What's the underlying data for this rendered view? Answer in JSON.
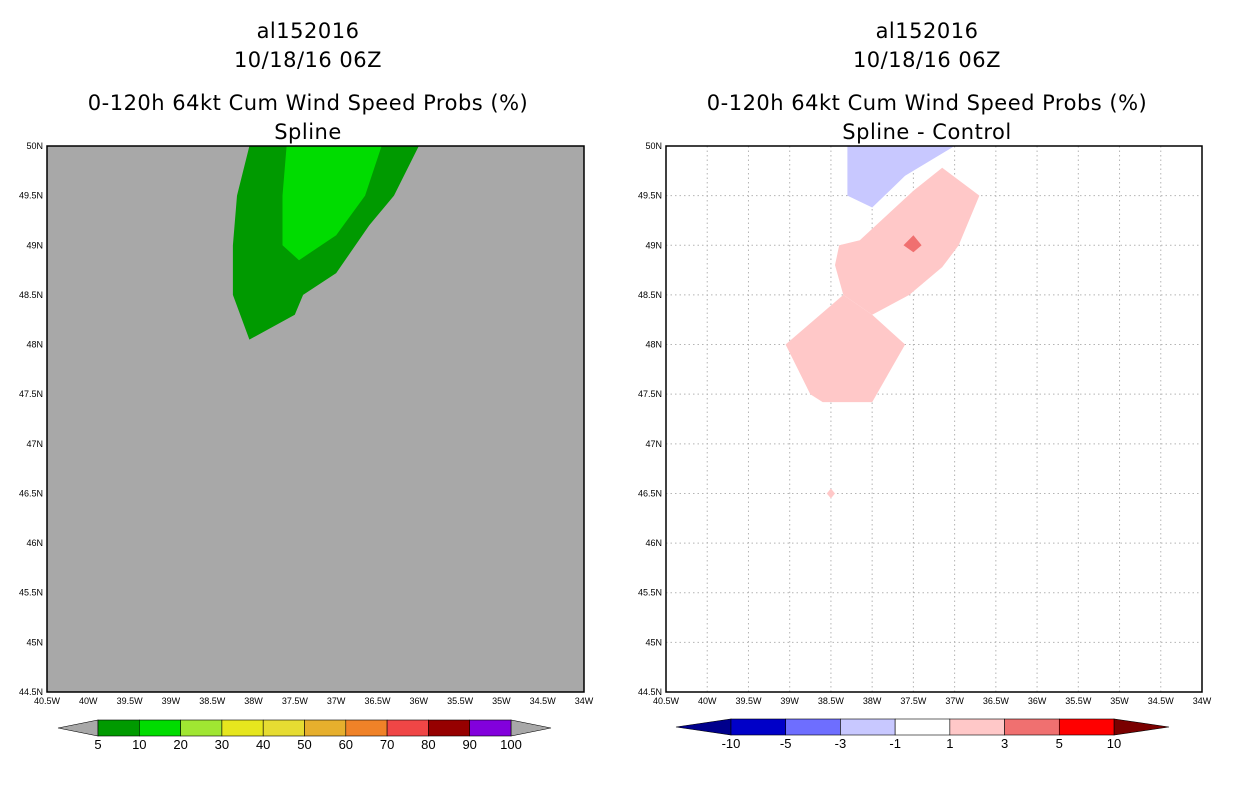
{
  "chart_data": [
    {
      "type": "filled-contour-map",
      "title_lines": [
        "al152016",
        "10/18/16 06Z",
        "0-120h 64kt Cum Wind Speed Probs (%)",
        "Spline"
      ],
      "x_ticks": [
        "40.5W",
        "40W",
        "39.5W",
        "39W",
        "38.5W",
        "38W",
        "37.5W",
        "37W",
        "36.5W",
        "36W",
        "35.5W",
        "35W",
        "34.5W",
        "34W"
      ],
      "y_ticks": [
        "50N",
        "49.5N",
        "49N",
        "48.5N",
        "48N",
        "47.5N",
        "47N",
        "46.5N",
        "46N",
        "45.5N",
        "45N",
        "44.5N"
      ],
      "xlim": [
        -40.5,
        -34.0
      ],
      "ylim": [
        44.5,
        50.0
      ],
      "grid": false,
      "background_color": "#a8a8a8",
      "regions": [
        {
          "name": "5-10%",
          "color": "#009a00",
          "lonlat": [
            [
              -38.05,
              50.0
            ],
            [
              -38.2,
              49.5
            ],
            [
              -38.25,
              49.0
            ],
            [
              -38.25,
              48.5
            ],
            [
              -38.05,
              48.05
            ],
            [
              -37.5,
              48.3
            ],
            [
              -37.4,
              48.5
            ],
            [
              -37.0,
              48.72
            ],
            [
              -36.6,
              49.2
            ],
            [
              -36.3,
              49.5
            ],
            [
              -36.0,
              50.0
            ]
          ]
        },
        {
          "name": "10-20%",
          "color": "#00dc00",
          "lonlat": [
            [
              -37.6,
              50.0
            ],
            [
              -37.65,
              49.5
            ],
            [
              -37.65,
              49.0
            ],
            [
              -37.45,
              48.85
            ],
            [
              -37.0,
              49.1
            ],
            [
              -36.65,
              49.5
            ],
            [
              -36.45,
              50.0
            ]
          ]
        }
      ],
      "colorbar": {
        "labels": [
          "5",
          "10",
          "20",
          "30",
          "40",
          "50",
          "60",
          "70",
          "80",
          "90",
          "100"
        ],
        "colors": [
          "#009a00",
          "#00dc00",
          "#a0e632",
          "#e6e61e",
          "#e6dc32",
          "#e6af2d",
          "#f08228",
          "#f04646",
          "#960000",
          "#8200dc"
        ],
        "extend_color": "#a8a8a8"
      }
    },
    {
      "type": "filled-contour-map",
      "title_lines": [
        "al152016",
        "10/18/16 06Z",
        "0-120h 64kt Cum Wind Speed Probs (%)",
        "Spline - Control"
      ],
      "x_ticks": [
        "40.5W",
        "40W",
        "39.5W",
        "39W",
        "38.5W",
        "38W",
        "37.5W",
        "37W",
        "36.5W",
        "36W",
        "35.5W",
        "35W",
        "34.5W",
        "34W"
      ],
      "y_ticks": [
        "50N",
        "49.5N",
        "49N",
        "48.5N",
        "48N",
        "47.5N",
        "47N",
        "46.5N",
        "46N",
        "45.5N",
        "45N",
        "44.5N"
      ],
      "xlim": [
        -40.5,
        -34.0
      ],
      "ylim": [
        44.5,
        50.0
      ],
      "grid": true,
      "background_color": "#ffffff",
      "regions": [
        {
          "name": "-3 to -1",
          "color": "#c8c8ff",
          "lonlat": [
            [
              -38.3,
              50.0
            ],
            [
              -38.3,
              49.5
            ],
            [
              -38.0,
              49.38
            ],
            [
              -37.6,
              49.7
            ],
            [
              -37.0,
              50.0
            ]
          ]
        },
        {
          "name": "1 to 3 (north)",
          "color": "#ffc8c8",
          "lonlat": [
            [
              -38.15,
              49.05
            ],
            [
              -37.5,
              49.55
            ],
            [
              -37.15,
              49.78
            ],
            [
              -36.7,
              49.5
            ],
            [
              -36.95,
              49.0
            ],
            [
              -37.15,
              48.78
            ],
            [
              -37.55,
              48.5
            ],
            [
              -38.0,
              48.3
            ],
            [
              -38.35,
              48.5
            ],
            [
              -38.45,
              48.8
            ],
            [
              -38.4,
              49.0
            ]
          ]
        },
        {
          "name": "1 to 3 (south)",
          "color": "#ffc8c8",
          "lonlat": [
            [
              -38.35,
              48.5
            ],
            [
              -38.0,
              48.3
            ],
            [
              -37.6,
              48.0
            ],
            [
              -38.0,
              47.42
            ],
            [
              -38.6,
              47.42
            ],
            [
              -38.75,
              47.5
            ],
            [
              -39.05,
              48.0
            ]
          ]
        },
        {
          "name": "3 to 5",
          "color": "#f07070",
          "lonlat": [
            [
              -37.5,
              49.1
            ],
            [
              -37.4,
              49.0
            ],
            [
              -37.5,
              48.93
            ],
            [
              -37.62,
              49.0
            ]
          ]
        },
        {
          "name": "1 to 3 (speck)",
          "color": "#ffc8c8",
          "lonlat": [
            [
              -38.5,
              46.55
            ],
            [
              -38.45,
              46.5
            ],
            [
              -38.5,
              46.45
            ],
            [
              -38.55,
              46.5
            ]
          ]
        }
      ],
      "colorbar": {
        "labels": [
          "-10",
          "-5",
          "-3",
          "-1",
          "1",
          "3",
          "5",
          "10"
        ],
        "colors": [
          "#0000c8",
          "#6e6eff",
          "#c8c8ff",
          "#ffffff",
          "#ffc8c8",
          "#f07070",
          "#ff0000"
        ],
        "low_extend_color": "#00008c",
        "high_extend_color": "#7a0000"
      }
    }
  ]
}
